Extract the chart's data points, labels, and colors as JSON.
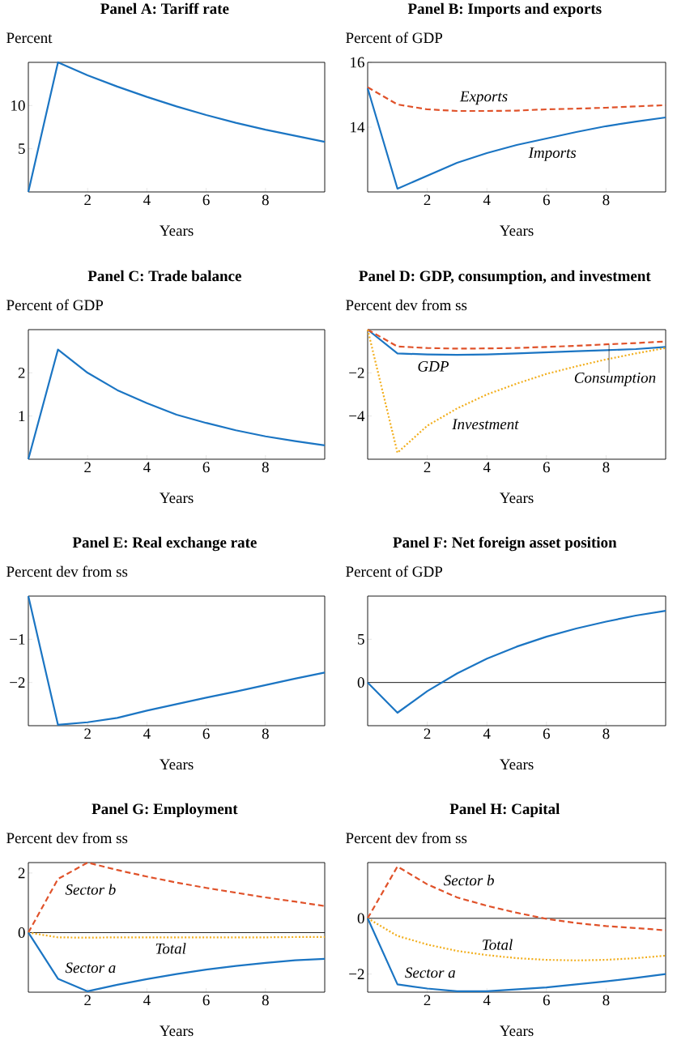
{
  "chart_data": [
    {
      "type": "line",
      "title": "Panel A: Tariff rate",
      "ylabel": "Percent",
      "xlabel": "Years",
      "x": [
        0,
        1,
        2,
        3,
        4,
        5,
        6,
        7,
        8,
        9,
        10
      ],
      "xlim": [
        0,
        10
      ],
      "ylim": [
        0,
        15
      ],
      "xticks": [
        2,
        4,
        6,
        8
      ],
      "yticks": [
        5,
        10
      ],
      "series": [
        {
          "color": "#1b75c3",
          "line_style": "solid",
          "values": [
            0,
            15,
            13.5,
            12.2,
            11.0,
            9.9,
            8.9,
            8.0,
            7.2,
            6.5,
            5.8
          ]
        }
      ]
    },
    {
      "type": "line",
      "title": "Panel B: Imports and exports",
      "ylabel": "Percent of GDP",
      "xlabel": "Years",
      "x": [
        0,
        1,
        2,
        3,
        4,
        5,
        6,
        7,
        8,
        9,
        10
      ],
      "xlim": [
        0,
        10
      ],
      "ylim": [
        12,
        16
      ],
      "xticks": [
        2,
        4,
        6,
        8
      ],
      "yticks": [
        14,
        16
      ],
      "series": [
        {
          "name": "Exports",
          "color": "#e0522a",
          "line_style": "dashed",
          "values": [
            15.23,
            14.7,
            14.55,
            14.5,
            14.5,
            14.51,
            14.55,
            14.57,
            14.6,
            14.64,
            14.68
          ]
        },
        {
          "name": "Imports",
          "color": "#1b75c3",
          "line_style": "solid",
          "values": [
            15.2,
            12.1,
            12.5,
            12.9,
            13.2,
            13.45,
            13.65,
            13.85,
            14.03,
            14.17,
            14.3
          ]
        }
      ]
    },
    {
      "type": "line",
      "title": "Panel C: Trade balance",
      "ylabel": "Percent of GDP",
      "xlabel": "Years",
      "x": [
        0,
        1,
        2,
        3,
        4,
        5,
        6,
        7,
        8,
        9,
        10
      ],
      "xlim": [
        0,
        10
      ],
      "ylim": [
        0,
        3
      ],
      "xticks": [
        2,
        4,
        6,
        8
      ],
      "yticks": [
        1,
        2
      ],
      "series": [
        {
          "color": "#1b75c3",
          "line_style": "solid",
          "values": [
            0,
            2.54,
            2.0,
            1.6,
            1.3,
            1.03,
            0.84,
            0.67,
            0.53,
            0.42,
            0.32
          ]
        }
      ]
    },
    {
      "type": "line",
      "title": "Panel D: GDP, consumption, and investment",
      "ylabel": "Percent dev from ss",
      "xlabel": "Years",
      "x": [
        0,
        1,
        2,
        3,
        4,
        5,
        6,
        7,
        8,
        9,
        10
      ],
      "xlim": [
        0,
        10
      ],
      "ylim": [
        -6,
        0
      ],
      "xticks": [
        2,
        4,
        6,
        8
      ],
      "yticks": [
        {
          "value": -4,
          "label": "−4"
        },
        {
          "value": -2,
          "label": "−2"
        }
      ],
      "series": [
        {
          "name": "GDP",
          "color": "#1b75c3",
          "line_style": "solid",
          "values": [
            0,
            -1.1,
            -1.15,
            -1.17,
            -1.15,
            -1.1,
            -1.05,
            -1.0,
            -0.95,
            -0.9,
            -0.8
          ]
        },
        {
          "name": "Consumption",
          "color": "#e0522a",
          "line_style": "dashed",
          "values": [
            0,
            -0.78,
            -0.85,
            -0.88,
            -0.87,
            -0.85,
            -0.8,
            -0.75,
            -0.68,
            -0.62,
            -0.55
          ]
        },
        {
          "name": "Investment",
          "color": "#f2ae1c",
          "line_style": "dotted",
          "values": [
            0,
            -5.7,
            -4.45,
            -3.65,
            -3.0,
            -2.5,
            -2.05,
            -1.7,
            -1.38,
            -1.1,
            -0.85
          ]
        }
      ]
    },
    {
      "type": "line",
      "title": "Panel E: Real exchange rate",
      "ylabel": "Percent dev from ss",
      "xlabel": "Years",
      "x": [
        0,
        1,
        2,
        3,
        4,
        5,
        6,
        7,
        8,
        9,
        10
      ],
      "xlim": [
        0,
        10
      ],
      "ylim": [
        -3,
        0
      ],
      "xticks": [
        2,
        4,
        6,
        8
      ],
      "yticks": [
        {
          "value": -2,
          "label": "−2"
        },
        {
          "value": -1,
          "label": "−1"
        }
      ],
      "series": [
        {
          "color": "#1b75c3",
          "line_style": "solid",
          "values": [
            0,
            -2.98,
            -2.92,
            -2.82,
            -2.65,
            -2.5,
            -2.35,
            -2.21,
            -2.06,
            -1.91,
            -1.77
          ]
        }
      ]
    },
    {
      "type": "line",
      "title": "Panel F: Net foreign asset position",
      "ylabel": "Percent of GDP",
      "xlabel": "Years",
      "x": [
        0,
        1,
        2,
        3,
        4,
        5,
        6,
        7,
        8,
        9,
        10
      ],
      "xlim": [
        0,
        10
      ],
      "ylim": [
        -5,
        10
      ],
      "xticks": [
        2,
        4,
        6,
        8
      ],
      "yticks": [
        0,
        5
      ],
      "ref_lines": [
        {
          "axis": "y",
          "value": 0,
          "color": "#000000"
        }
      ],
      "series": [
        {
          "color": "#1b75c3",
          "line_style": "solid",
          "values": [
            0,
            -3.5,
            -1.0,
            1.05,
            2.75,
            4.15,
            5.3,
            6.25,
            7.05,
            7.75,
            8.3
          ]
        }
      ]
    },
    {
      "type": "line",
      "title": "Panel G: Employment",
      "ylabel": "Percent dev from ss",
      "xlabel": "Years",
      "x": [
        0,
        1,
        2,
        3,
        4,
        5,
        6,
        7,
        8,
        9,
        10
      ],
      "xlim": [
        0,
        10
      ],
      "ylim": [
        -2,
        2.35
      ],
      "xticks": [
        2,
        4,
        6,
        8
      ],
      "yticks": [
        0,
        2
      ],
      "ref_lines": [
        {
          "axis": "y",
          "value": 0,
          "color": "#000000"
        }
      ],
      "series": [
        {
          "name": "Sector b",
          "color": "#e0522a",
          "line_style": "dashed",
          "values": [
            0,
            1.8,
            2.35,
            2.1,
            1.88,
            1.68,
            1.5,
            1.34,
            1.18,
            1.04,
            0.89
          ]
        },
        {
          "name": "Total",
          "color": "#f2ae1c",
          "line_style": "dotted",
          "values": [
            0,
            -0.16,
            -0.17,
            -0.16,
            -0.16,
            -0.16,
            -0.16,
            -0.16,
            -0.16,
            -0.15,
            -0.15
          ]
        },
        {
          "name": "Sector a",
          "color": "#1b75c3",
          "line_style": "solid",
          "values": [
            0,
            -1.55,
            -1.97,
            -1.75,
            -1.56,
            -1.39,
            -1.24,
            -1.12,
            -1.02,
            -0.93,
            -0.88
          ]
        }
      ]
    },
    {
      "type": "line",
      "title": "Panel H: Capital",
      "ylabel": "Percent dev from ss",
      "xlabel": "Years",
      "x": [
        0,
        1,
        2,
        3,
        4,
        5,
        6,
        7,
        8,
        9,
        10
      ],
      "xlim": [
        0,
        10
      ],
      "ylim": [
        -2.65,
        2
      ],
      "xticks": [
        2,
        4,
        6,
        8
      ],
      "yticks": [
        {
          "value": -2,
          "label": "−2"
        },
        0
      ],
      "ref_lines": [
        {
          "axis": "y",
          "value": 0,
          "color": "#000000"
        }
      ],
      "series": [
        {
          "name": "Sector b",
          "color": "#e0522a",
          "line_style": "dashed",
          "values": [
            0,
            1.86,
            1.22,
            0.75,
            0.45,
            0.2,
            -0.02,
            -0.17,
            -0.28,
            -0.35,
            -0.43
          ]
        },
        {
          "name": "Total",
          "color": "#f2ae1c",
          "line_style": "dotted",
          "values": [
            0,
            -0.63,
            -0.94,
            -1.17,
            -1.32,
            -1.43,
            -1.49,
            -1.51,
            -1.49,
            -1.43,
            -1.34
          ]
        },
        {
          "name": "Sector a",
          "color": "#1b75c3",
          "line_style": "solid",
          "values": [
            0,
            -2.37,
            -2.52,
            -2.62,
            -2.62,
            -2.55,
            -2.48,
            -2.37,
            -2.26,
            -2.14,
            -2.0
          ]
        }
      ]
    }
  ]
}
